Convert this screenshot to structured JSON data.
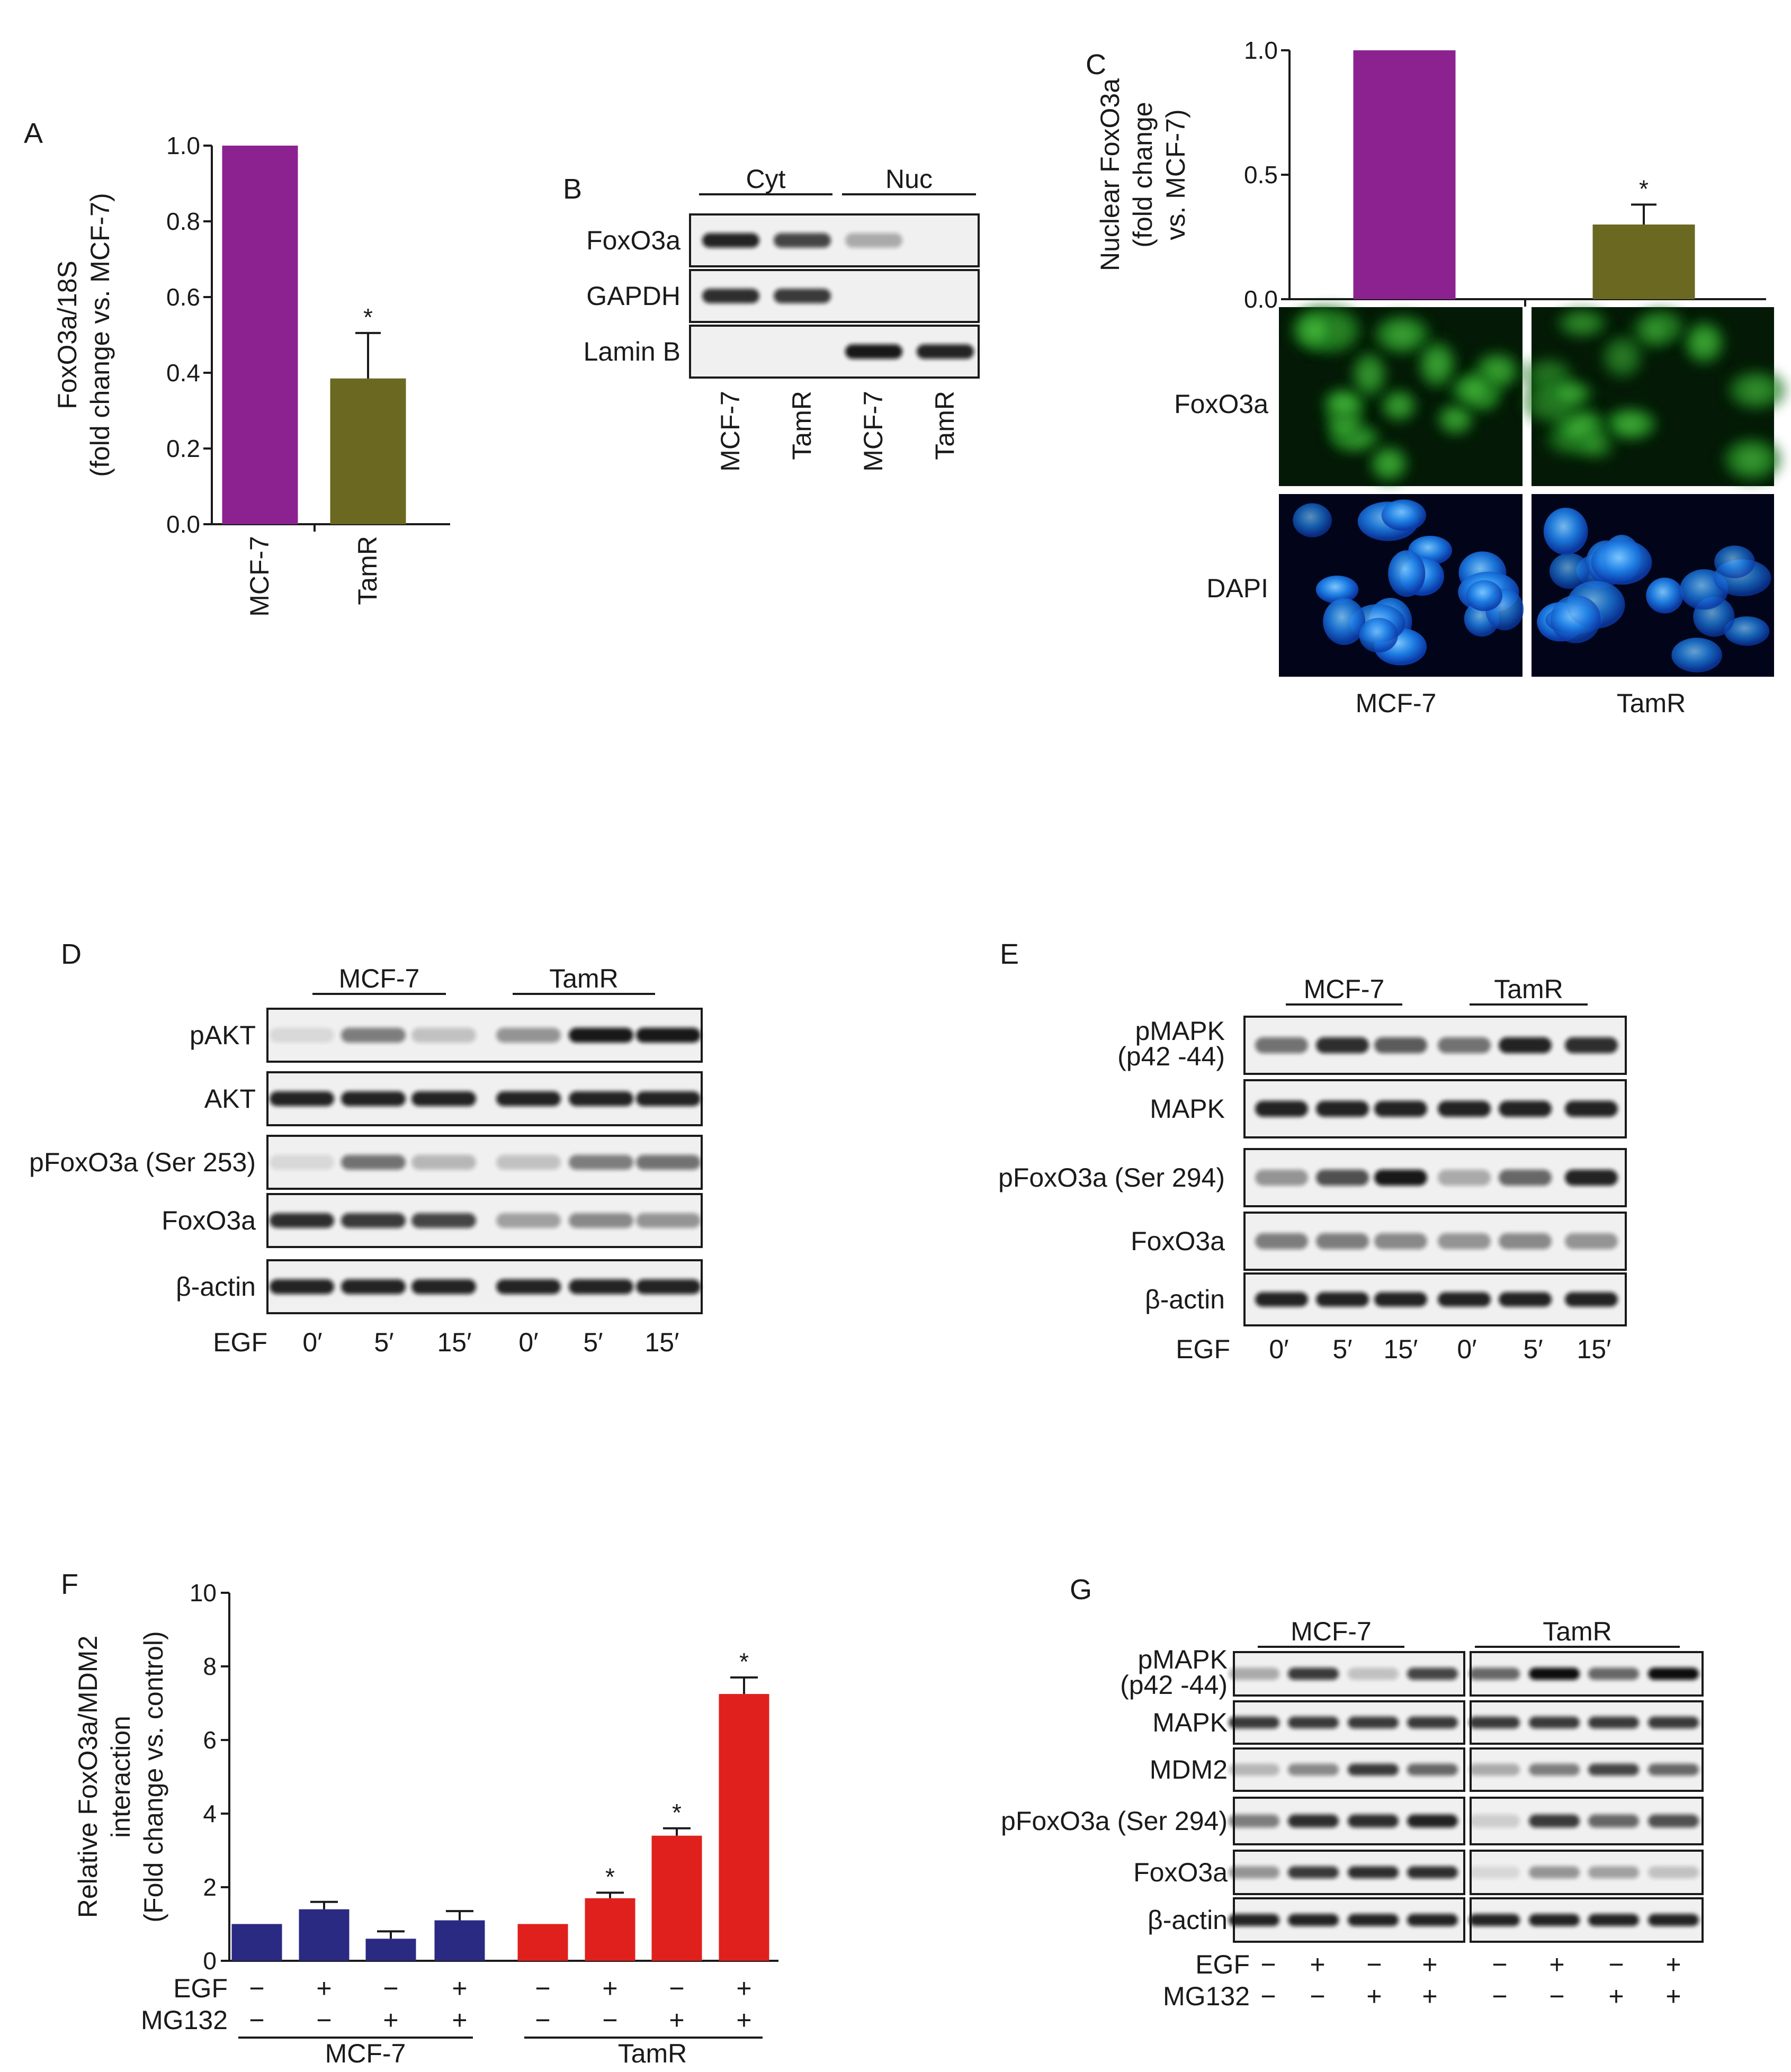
{
  "figure": {
    "panel_A": {
      "letter": "A"
    },
    "panel_B": {
      "letter": "B",
      "groups": [
        "Cyt",
        "Nuc"
      ],
      "rows": [
        "FoxO3a",
        "GAPDH",
        "Lamin B"
      ],
      "lanes": [
        "MCF-7",
        "TamR",
        "MCF-7",
        "TamR"
      ],
      "bands": [
        [
          0.9,
          0.75,
          0.3,
          0
        ],
        [
          0.85,
          0.8,
          0,
          0
        ],
        [
          0,
          0,
          0.95,
          0.9
        ]
      ]
    },
    "panel_C": {
      "letter": "C",
      "image_rows": [
        "FoxO3a",
        "DAPI"
      ],
      "image_cols": [
        "MCF-7",
        "TamR"
      ]
    },
    "panel_D": {
      "letter": "D",
      "groups": [
        "MCF-7",
        "TamR"
      ],
      "rows": [
        "pAKT",
        "AKT",
        "pFoxO3a (Ser 253)",
        "FoxO3a",
        "β-actin"
      ],
      "bands": [
        [
          0.1,
          0.5,
          0.2,
          0.4,
          0.95,
          0.95
        ],
        [
          0.9,
          0.9,
          0.9,
          0.9,
          0.9,
          0.9
        ],
        [
          0.1,
          0.55,
          0.25,
          0.2,
          0.5,
          0.55
        ],
        [
          0.85,
          0.8,
          0.75,
          0.35,
          0.45,
          0.4
        ],
        [
          0.9,
          0.9,
          0.9,
          0.9,
          0.9,
          0.9
        ]
      ],
      "egf_label": "EGF",
      "times": [
        "0′",
        "5′",
        "15′",
        "0′",
        "5′",
        "15′"
      ]
    },
    "panel_E": {
      "letter": "E",
      "groups": [
        "MCF-7",
        "TamR"
      ],
      "rows": [
        "pMAPK\n(p42 -44)",
        "MAPK",
        "pFoxO3a (Ser 294)",
        "FoxO3a",
        "β-actin"
      ],
      "row_lines": [
        [
          "pMAPK",
          "(p42 -44)"
        ],
        [
          "MAPK"
        ],
        [
          "pFoxO3a (Ser 294)"
        ],
        [
          "FoxO3a"
        ],
        [
          "β-actin"
        ]
      ],
      "bands": [
        [
          0.55,
          0.85,
          0.65,
          0.55,
          0.9,
          0.85
        ],
        [
          0.9,
          0.9,
          0.9,
          0.9,
          0.9,
          0.9
        ],
        [
          0.4,
          0.7,
          0.95,
          0.3,
          0.6,
          0.9
        ],
        [
          0.5,
          0.5,
          0.45,
          0.4,
          0.45,
          0.4
        ],
        [
          0.9,
          0.9,
          0.9,
          0.9,
          0.9,
          0.9
        ]
      ],
      "egf_label": "EGF",
      "times": [
        "0′",
        "5′",
        "15′",
        "0′",
        "5′",
        "15′"
      ]
    },
    "panel_F": {
      "letter": "F"
    },
    "panel_G": {
      "letter": "G",
      "groups": [
        "MCF-7",
        "TamR"
      ],
      "rows": [
        "pMAPK\n(p42 -44)",
        "MAPK",
        "MDM2",
        "pFoxO3a (Ser 294)",
        "FoxO3a",
        "β-actin"
      ],
      "row_lines": [
        [
          "pMAPK",
          "(p42 -44)"
        ],
        [
          "MAPK"
        ],
        [
          "MDM2"
        ],
        [
          "pFoxO3a (Ser 294)"
        ],
        [
          "FoxO3a"
        ],
        [
          "β-actin"
        ]
      ],
      "bands": [
        [
          0.3,
          0.8,
          0.2,
          0.75,
          0.6,
          1.0,
          0.6,
          1.0
        ],
        [
          0.8,
          0.8,
          0.8,
          0.8,
          0.8,
          0.8,
          0.8,
          0.8
        ],
        [
          0.25,
          0.45,
          0.8,
          0.6,
          0.3,
          0.5,
          0.75,
          0.6
        ],
        [
          0.5,
          0.85,
          0.85,
          0.9,
          0.15,
          0.8,
          0.6,
          0.7
        ],
        [
          0.4,
          0.8,
          0.85,
          0.85,
          0.1,
          0.4,
          0.35,
          0.2
        ],
        [
          0.9,
          0.9,
          0.9,
          0.9,
          0.9,
          0.9,
          0.9,
          0.9
        ]
      ],
      "cond_labels": [
        "EGF",
        "MG132"
      ],
      "cond_signs": [
        [
          "−",
          "+",
          "−",
          "+",
          "−",
          "+",
          "−",
          "+"
        ],
        [
          "−",
          "−",
          "+",
          "+",
          "−",
          "−",
          "+",
          "+"
        ]
      ]
    }
  },
  "chart_data": [
    {
      "id": "A",
      "type": "bar",
      "categories": [
        "MCF-7",
        "TamR"
      ],
      "values": [
        1.0,
        0.385
      ],
      "errors": [
        0,
        0.12
      ],
      "significance": [
        "",
        "*"
      ],
      "colors": [
        "#8b2290",
        "#6b6822"
      ],
      "ylabel": "FoxO3a/18S\n(fold change vs. MCF-7)",
      "ylabel_lines": [
        "FoxO3a/18S",
        "(fold change vs. MCF-7)"
      ],
      "ylim": [
        0,
        1.0
      ],
      "yticks": [
        "0.0",
        "0.2",
        "0.4",
        "0.6",
        "0.8",
        "1.0"
      ]
    },
    {
      "id": "C",
      "type": "bar",
      "categories": [
        "MCF-7",
        "TamR"
      ],
      "values": [
        1.0,
        0.3
      ],
      "errors": [
        0,
        0.08
      ],
      "significance": [
        "",
        "*"
      ],
      "colors": [
        "#8b2290",
        "#6b6822"
      ],
      "ylabel": "Nuclear FoxO3a\n(fold change\nvs. MCF-7)",
      "ylabel_lines": [
        "Nuclear FoxO3a",
        "(fold change",
        "vs. MCF-7)"
      ],
      "ylim": [
        0,
        1.0
      ],
      "yticks": [
        "0.0",
        "0.5",
        "1.0"
      ]
    },
    {
      "id": "F",
      "type": "bar",
      "groups": [
        "MCF-7",
        "TamR"
      ],
      "values": [
        [
          1.0,
          1.4,
          0.6,
          1.1
        ],
        [
          1.0,
          1.7,
          3.4,
          7.25
        ]
      ],
      "errors": [
        [
          0,
          0.2,
          0.2,
          0.25
        ],
        [
          0,
          0.15,
          0.2,
          0.45
        ]
      ],
      "significance": [
        [
          "",
          "",
          "",
          ""
        ],
        [
          "",
          "*",
          "*",
          "*"
        ]
      ],
      "colors": [
        "#2a2a82",
        "#e0201c"
      ],
      "ylabel": "Relative FoxO3a/MDM2\ninteraction\n(Fold change vs. control)",
      "ylabel_lines": [
        "Relative FoxO3a/MDM2",
        "interaction",
        "(Fold change vs. control)"
      ],
      "ylim": [
        0,
        10
      ],
      "yticks": [
        "0",
        "2",
        "4",
        "6",
        "8",
        "10"
      ],
      "row_labels": [
        "EGF",
        "MG132"
      ],
      "egf": [
        "−",
        "+",
        "−",
        "+",
        "−",
        "+",
        "−",
        "+"
      ],
      "mg132": [
        "−",
        "−",
        "+",
        "+",
        "−",
        "−",
        "+",
        "+"
      ]
    }
  ]
}
